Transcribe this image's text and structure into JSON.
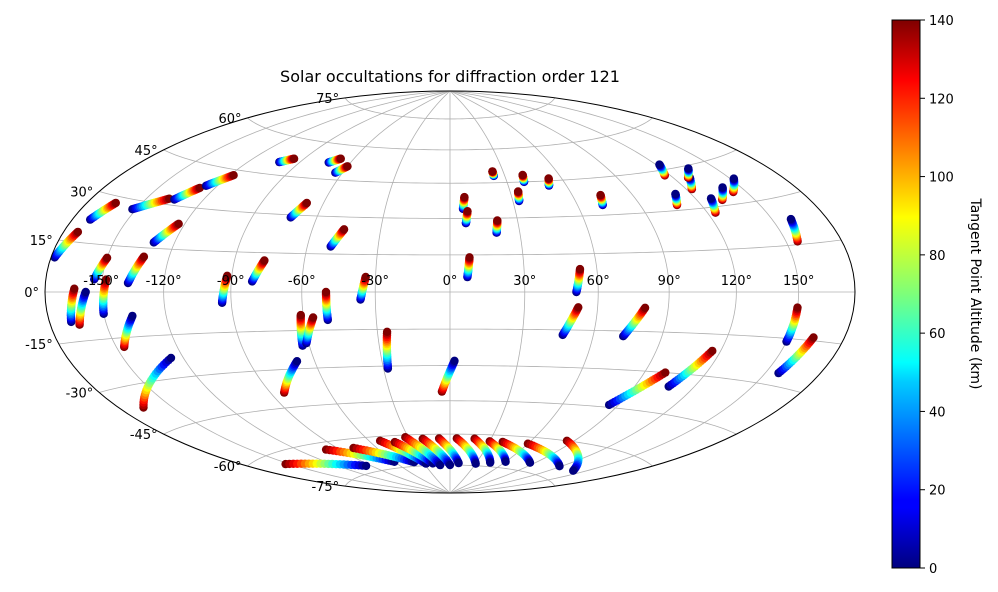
{
  "chart_data": {
    "type": "scatter",
    "projection": "hammer",
    "title": "Solar occultations for diffraction order 121",
    "lon_ticks": [
      -150,
      -120,
      -90,
      -60,
      -30,
      0,
      30,
      60,
      90,
      120,
      150
    ],
    "lon_tick_labels": [
      "-150°",
      "-120°",
      "-90°",
      "-60°",
      "-30°",
      "0°",
      "30°",
      "60°",
      "90°",
      "120°",
      "150°"
    ],
    "lat_ticks": [
      -75,
      -60,
      -45,
      -30,
      -15,
      0,
      15,
      30,
      45,
      60,
      75
    ],
    "lat_tick_labels": [
      "-75°",
      "-60°",
      "-45°",
      "-30°",
      "-15°",
      "0°",
      "15°",
      "30°",
      "45°",
      "60°",
      "75°"
    ],
    "grid": true,
    "colorbar": {
      "label": "Tangent Point Altitude (km)",
      "colormap": "jet",
      "range": [
        0,
        140
      ],
      "ticks": [
        0,
        20,
        40,
        60,
        80,
        100,
        120,
        140
      ],
      "tick_labels": [
        "0",
        "20",
        "40",
        "60",
        "80",
        "100",
        "120",
        "140"
      ]
    },
    "tracks": [
      {
        "lon": [
          -178,
          -172
        ],
        "lat": [
          10,
          18
        ],
        "alt": [
          0,
          140
        ]
      },
      {
        "lon": [
          -170,
          -164
        ],
        "lat": [
          22,
          28
        ],
        "alt": [
          0,
          140
        ]
      },
      {
        "lon": [
          -152,
          -138
        ],
        "lat": [
          27,
          32
        ],
        "alt": [
          0,
          140
        ]
      },
      {
        "lon": [
          -135,
          -128
        ],
        "lat": [
          32,
          37
        ],
        "alt": [
          0,
          140
        ]
      },
      {
        "lon": [
          -126,
          -118
        ],
        "lat": [
          38,
          43
        ],
        "alt": [
          0,
          140
        ]
      },
      {
        "lon": [
          -102,
          -96
        ],
        "lat": [
          50,
          52
        ],
        "alt": [
          0,
          140
        ]
      },
      {
        "lon": [
          -73,
          -68
        ],
        "lat": [
          52,
          54
        ],
        "alt": [
          0,
          140
        ]
      },
      {
        "lon": [
          -64,
          -60
        ],
        "lat": [
          48,
          51
        ],
        "alt": [
          0,
          140
        ]
      },
      {
        "lon": [
          -154,
          -150
        ],
        "lat": [
          4,
          11
        ],
        "alt": [
          0,
          140
        ]
      },
      {
        "lon": [
          -137,
          -132
        ],
        "lat": [
          3,
          12
        ],
        "alt": [
          0,
          140
        ]
      },
      {
        "lon": [
          -130,
          -123
        ],
        "lat": [
          17,
          24
        ],
        "alt": [
          0,
          140
        ]
      },
      {
        "lon": [
          -94,
          -92
        ],
        "lat": [
          -4,
          6
        ],
        "alt": [
          0,
          140
        ]
      },
      {
        "lon": [
          -81,
          -77
        ],
        "lat": [
          4,
          12
        ],
        "alt": [
          0,
          140
        ]
      },
      {
        "lon": [
          -72,
          -68
        ],
        "lat": [
          29,
          35
        ],
        "alt": [
          0,
          140
        ]
      },
      {
        "lon": [
          -50,
          -46
        ],
        "lat": [
          18,
          25
        ],
        "alt": [
          0,
          140
        ]
      },
      {
        "lon": [
          -36,
          -34
        ],
        "lat": [
          -3,
          6
        ],
        "alt": [
          0,
          140
        ]
      },
      {
        "lon": [
          -50,
          -50
        ],
        "lat": [
          -11,
          0
        ],
        "alt": [
          0,
          140
        ]
      },
      {
        "lon": [
          -150,
          -148
        ],
        "lat": [
          -7,
          4
        ],
        "alt": [
          0,
          140
        ]
      },
      {
        "lon": [
          -146,
          -136
        ],
        "lat": [
          -18,
          -8
        ],
        "alt": [
          140,
          0
        ]
      },
      {
        "lon": [
          -168,
          -164
        ],
        "lat": [
          -9,
          1
        ],
        "alt": [
          0,
          140
        ]
      },
      {
        "lon": [
          -164,
          -158
        ],
        "lat": [
          -10,
          0
        ],
        "alt": [
          140,
          0
        ]
      },
      {
        "lon": [
          -166,
          -126
        ],
        "lat": [
          -37,
          -23
        ],
        "alt": [
          140,
          0
        ]
      },
      {
        "lon": [
          -83,
          -68
        ],
        "lat": [
          -39,
          -27
        ],
        "alt": [
          140,
          0
        ]
      },
      {
        "lon": [
          -63,
          -61
        ],
        "lat": [
          -21,
          -9
        ],
        "alt": [
          0,
          140
        ]
      },
      {
        "lon": [
          -61,
          -56
        ],
        "lat": [
          -20,
          -10
        ],
        "alt": [
          0,
          140
        ]
      },
      {
        "lon": [
          -28,
          -26
        ],
        "lat": [
          -31,
          -16
        ],
        "alt": [
          0,
          140
        ]
      },
      {
        "lon": [
          -4,
          2
        ],
        "lat": [
          -41,
          -28
        ],
        "alt": [
          140,
          0
        ]
      },
      {
        "lon": [
          7,
          8
        ],
        "lat": [
          6,
          14
        ],
        "alt": [
          0,
          140
        ]
      },
      {
        "lon": [
          6,
          7
        ],
        "lat": [
          34,
          39
        ],
        "alt": [
          0,
          140
        ]
      },
      {
        "lon": [
          7,
          8
        ],
        "lat": [
          28,
          33
        ],
        "alt": [
          0,
          140
        ]
      },
      {
        "lon": [
          20,
          21
        ],
        "lat": [
          24,
          29
        ],
        "alt": [
          0,
          140
        ]
      },
      {
        "lon": [
          24,
          24
        ],
        "lat": [
          48,
          50
        ],
        "alt": [
          0,
          140
        ]
      },
      {
        "lon": [
          33,
          34
        ],
        "lat": [
          37,
          41
        ],
        "alt": [
          0,
          140
        ]
      },
      {
        "lon": [
          39,
          40
        ],
        "lat": [
          45,
          48
        ],
        "alt": [
          0,
          140
        ]
      },
      {
        "lon": [
          51,
          53
        ],
        "lat": [
          43,
          46
        ],
        "alt": [
          0,
          140
        ]
      },
      {
        "lon": [
          51,
          53
        ],
        "lat": [
          0,
          9
        ],
        "alt": [
          0,
          140
        ]
      },
      {
        "lon": [
          47,
          52
        ],
        "lat": [
          -17,
          -6
        ],
        "alt": [
          0,
          140
        ]
      },
      {
        "lon": [
          73,
          80
        ],
        "lat": [
          -17,
          -6
        ],
        "alt": [
          0,
          140
        ]
      },
      {
        "lon": [
          72,
          74
        ],
        "lat": [
          34,
          38
        ],
        "alt": [
          0,
          140
        ]
      },
      {
        "lon": [
          108,
          112
        ],
        "lat": [
          32,
          36
        ],
        "alt": [
          140,
          0
        ]
      },
      {
        "lon": [
          117,
          122
        ],
        "lat": [
          43,
          47
        ],
        "alt": [
          140,
          0
        ]
      },
      {
        "lon": [
          123,
          129
        ],
        "lat": [
          37,
          41
        ],
        "alt": [
          140,
          0
        ]
      },
      {
        "lon": [
          128,
          135
        ],
        "lat": [
          41,
          44
        ],
        "alt": [
          140,
          0
        ]
      },
      {
        "lon": [
          124,
          128
        ],
        "lat": [
          28,
          33
        ],
        "alt": [
          140,
          0
        ]
      },
      {
        "lon": [
          133,
          140
        ],
        "lat": [
          32,
          36
        ],
        "alt": [
          140,
          0
        ]
      },
      {
        "lon": [
          143,
          152
        ],
        "lat": [
          34,
          38
        ],
        "alt": [
          140,
          0
        ]
      },
      {
        "lon": [
          156,
          160
        ],
        "lat": [
          16,
          23
        ],
        "alt": [
          140,
          0
        ]
      },
      {
        "lon": [
          150,
          150
        ],
        "lat": [
          -16,
          -5
        ],
        "alt": [
          0,
          140
        ]
      },
      {
        "lon": [
          157,
          163
        ],
        "lat": [
          -26,
          -14
        ],
        "alt": [
          0,
          140
        ]
      },
      {
        "lon": [
          107,
          116
        ],
        "lat": [
          -35,
          -21
        ],
        "alt": [
          0,
          140
        ]
      },
      {
        "lon": [
          85,
          100
        ],
        "lat": [
          -44,
          -30
        ],
        "alt": [
          0,
          140
        ]
      },
      {
        "lon": [
          -153,
          -95
        ],
        "lat": [
          -64,
          -72
        ],
        "alt": [
          140,
          0
        ]
      },
      {
        "lon": [
          -100,
          -60
        ],
        "lat": [
          -63,
          -72
        ],
        "alt": [
          140,
          0
        ]
      },
      {
        "lon": [
          -78,
          -40
        ],
        "lat": [
          -64,
          -73
        ],
        "alt": [
          140,
          0
        ]
      },
      {
        "lon": [
          -52,
          -28
        ],
        "lat": [
          -62,
          -74
        ],
        "alt": [
          140,
          0
        ]
      },
      {
        "lon": [
          -42,
          -20
        ],
        "lat": [
          -63,
          -74
        ],
        "alt": [
          140,
          0
        ]
      },
      {
        "lon": [
          -32,
          -12
        ],
        "lat": [
          -61,
          -75
        ],
        "alt": [
          140,
          0
        ]
      },
      {
        "lon": [
          -20,
          0
        ],
        "lat": [
          -62,
          -75
        ],
        "alt": [
          140,
          0
        ]
      },
      {
        "lon": [
          -8,
          10
        ],
        "lat": [
          -62,
          -74
        ],
        "alt": [
          140,
          0
        ]
      },
      {
        "lon": [
          5,
          30
        ],
        "lat": [
          -62,
          -74
        ],
        "alt": [
          140,
          0
        ]
      },
      {
        "lon": [
          18,
          45
        ],
        "lat": [
          -62,
          -73
        ],
        "alt": [
          140,
          0
        ]
      },
      {
        "lon": [
          30,
          60
        ],
        "lat": [
          -63,
          -72
        ],
        "alt": [
          140,
          0
        ]
      },
      {
        "lon": [
          40,
          85
        ],
        "lat": [
          -63,
          -71
        ],
        "alt": [
          140,
          0
        ]
      },
      {
        "lon": [
          60,
          118
        ],
        "lat": [
          -63,
          -70
        ],
        "alt": [
          140,
          0
        ]
      },
      {
        "lon": [
          85,
          140
        ],
        "lat": [
          -60,
          -70
        ],
        "alt": [
          140,
          0
        ]
      }
    ]
  }
}
